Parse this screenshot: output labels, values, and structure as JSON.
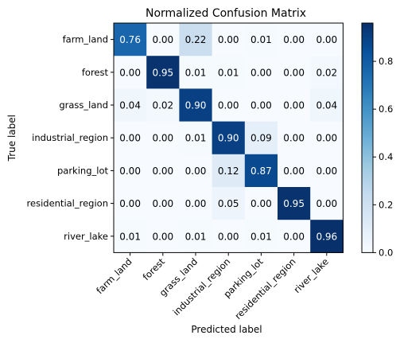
{
  "chart_data": {
    "type": "heatmap",
    "title": "Normalized Confusion Matrix",
    "xlabel": "Predicted label",
    "ylabel": "True label",
    "x_categories": [
      "farm_land",
      "forest",
      "grass_land",
      "industrial_region",
      "parking_lot",
      "residential_region",
      "river_lake"
    ],
    "y_categories": [
      "farm_land",
      "forest",
      "grass_land",
      "industrial_region",
      "parking_lot",
      "residential_region",
      "river_lake"
    ],
    "values": [
      [
        0.76,
        0.0,
        0.22,
        0.0,
        0.01,
        0.0,
        0.0
      ],
      [
        0.0,
        0.95,
        0.01,
        0.01,
        0.0,
        0.0,
        0.02
      ],
      [
        0.04,
        0.02,
        0.9,
        0.0,
        0.0,
        0.0,
        0.04
      ],
      [
        0.0,
        0.0,
        0.01,
        0.9,
        0.09,
        0.0,
        0.0
      ],
      [
        0.0,
        0.0,
        0.0,
        0.12,
        0.87,
        0.0,
        0.0
      ],
      [
        0.0,
        0.0,
        0.0,
        0.05,
        0.0,
        0.95,
        0.0
      ],
      [
        0.01,
        0.0,
        0.01,
        0.0,
        0.01,
        0.0,
        0.96
      ]
    ],
    "value_labels": [
      [
        "0.76",
        "0.00",
        "0.22",
        "0.00",
        "0.01",
        "0.00",
        "0.00"
      ],
      [
        "0.00",
        "0.95",
        "0.01",
        "0.01",
        "0.00",
        "0.00",
        "0.02"
      ],
      [
        "0.04",
        "0.02",
        "0.90",
        "0.00",
        "0.00",
        "0.00",
        "0.04"
      ],
      [
        "0.00",
        "0.00",
        "0.01",
        "0.90",
        "0.09",
        "0.00",
        "0.00"
      ],
      [
        "0.00",
        "0.00",
        "0.00",
        "0.12",
        "0.87",
        "0.00",
        "0.00"
      ],
      [
        "0.00",
        "0.00",
        "0.00",
        "0.05",
        "0.00",
        "0.95",
        "0.00"
      ],
      [
        "0.01",
        "0.00",
        "0.01",
        "0.00",
        "0.01",
        "0.00",
        "0.96"
      ]
    ],
    "colormap": "Blues",
    "color_range": [
      0.0,
      0.96
    ],
    "colorbar_ticks": [
      "0.0",
      "0.2",
      "0.4",
      "0.6",
      "0.8"
    ],
    "colorbar_tick_values": [
      0.0,
      0.2,
      0.4,
      0.6,
      0.8
    ],
    "colors": {
      "low": "#f7fbff",
      "high": "#08306b",
      "text_dark": "#000000",
      "text_light": "#ffffff"
    },
    "legend": "colorbar-right",
    "grid": false
  }
}
